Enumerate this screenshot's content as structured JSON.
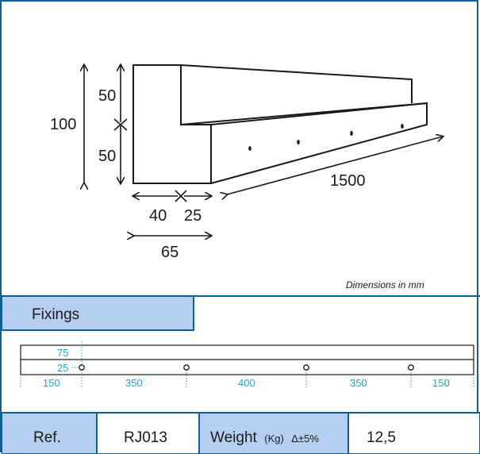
{
  "dimensions": {
    "height_total": "100",
    "height_upper": "50",
    "height_lower": "50",
    "width_left": "40",
    "width_right": "25",
    "width_total": "65",
    "length": "1500"
  },
  "note": "Dimensions in mm",
  "fixings": {
    "title": "Fixings",
    "edge_offset": "75",
    "hole_offset": "25",
    "spacings": [
      "150",
      "350",
      "400",
      "350",
      "150"
    ]
  },
  "spec": {
    "ref_label": "Ref.",
    "ref_value": "RJ013",
    "weight_label": "Weight",
    "weight_unit": "(Kg)",
    "weight_tolerance": "Δ±5%",
    "weight_value": "12,5"
  },
  "colors": {
    "border": "#0f5f94",
    "header_fill": "#b6cff0",
    "accent_dim": "#1fa3d6",
    "line": "#1a1a1a"
  }
}
